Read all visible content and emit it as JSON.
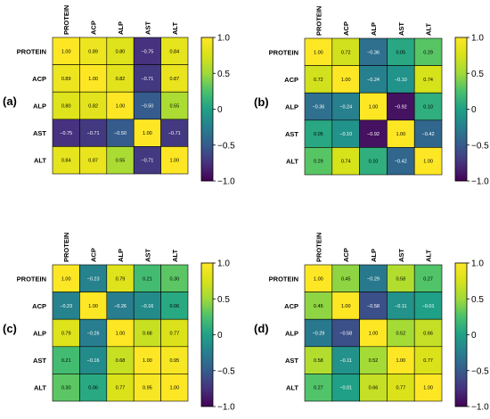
{
  "chart_data": [
    {
      "type": "heatmap",
      "panel_label": "(a)",
      "rows": [
        "PROTEIN",
        "ACP",
        "ALP",
        "AST",
        "ALT"
      ],
      "cols": [
        "PROTEIN",
        "ACP",
        "ALP",
        "AST",
        "ALT"
      ],
      "values": [
        [
          1.0,
          0.89,
          0.8,
          -0.75,
          0.84
        ],
        [
          0.89,
          1.0,
          0.82,
          -0.71,
          0.87
        ],
        [
          0.8,
          0.82,
          1.0,
          -0.5,
          0.55
        ],
        [
          -0.75,
          -0.71,
          -0.5,
          1.0,
          -0.71
        ],
        [
          0.84,
          0.87,
          0.55,
          -0.71,
          1.0
        ]
      ],
      "cell_labels": [
        [
          "1.00",
          "0.89",
          "0.80",
          "−0.75",
          "0.84"
        ],
        [
          "0.89",
          "1.00",
          "0.82",
          "−0.71",
          "0.87"
        ],
        [
          "0.80",
          "0.82",
          "1.00",
          "−0.50",
          "0.55"
        ],
        [
          "−0.75",
          "−0.71",
          "−0.50",
          "1.00",
          "−0.71"
        ],
        [
          "0.84",
          "0.87",
          "0.55",
          "−0.71",
          "1.00"
        ]
      ],
      "colorbar_ticks": [
        "1.0",
        "0.5",
        "0",
        "−0.5",
        "−1.0"
      ],
      "colorbar_tick_values": [
        1.0,
        0.5,
        0,
        -0.5,
        -1.0
      ],
      "vmin": -1.0,
      "vmax": 1.0,
      "colormap": "viridis"
    },
    {
      "type": "heatmap",
      "panel_label": "(b)",
      "rows": [
        "PROTEIN",
        "ACP",
        "ALP",
        "AST",
        "ALT"
      ],
      "cols": [
        "PROTEIN",
        "ACP",
        "ALP",
        "AST",
        "ALT"
      ],
      "values": [
        [
          1.0,
          0.72,
          -0.36,
          0.05,
          0.29
        ],
        [
          0.72,
          1.0,
          -0.24,
          -0.1,
          0.74
        ],
        [
          -0.36,
          -0.24,
          1.0,
          -0.92,
          0.1
        ],
        [
          0.05,
          -0.1,
          -0.92,
          1.0,
          -0.42
        ],
        [
          0.29,
          0.74,
          0.1,
          -0.42,
          1.0
        ]
      ],
      "cell_labels": [
        [
          "1.00",
          "0.72",
          "−0.36",
          "0.05",
          "0.29"
        ],
        [
          "0.72",
          "1.00",
          "−0.24",
          "−0.10",
          "0.74"
        ],
        [
          "−0.36",
          "−0.24",
          "1.00",
          "−0.92",
          "0.10"
        ],
        [
          "0.05",
          "−0.10",
          "−0.92",
          "1.00",
          "−0.42"
        ],
        [
          "0.29",
          "0.74",
          "0.10",
          "−0.42",
          "1.00"
        ]
      ],
      "colorbar_ticks": [
        "1.0",
        "0.5",
        "0",
        "−0.5",
        "−1.0"
      ],
      "colorbar_tick_values": [
        1.0,
        0.5,
        0,
        -0.5,
        -1.0
      ],
      "vmin": -1.0,
      "vmax": 1.0,
      "colormap": "viridis"
    },
    {
      "type": "heatmap",
      "panel_label": "(c)",
      "rows": [
        "PROTEIN",
        "ACP",
        "ALP",
        "AST",
        "ALT"
      ],
      "cols": [
        "PROTEIN",
        "ACP",
        "ALP",
        "AST",
        "ALT"
      ],
      "values": [
        [
          1.0,
          -0.23,
          0.79,
          0.21,
          0.3
        ],
        [
          -0.23,
          1.0,
          -0.26,
          -0.16,
          0.06
        ],
        [
          0.79,
          -0.26,
          1.0,
          0.68,
          0.77
        ],
        [
          0.21,
          -0.16,
          0.68,
          1.0,
          0.95
        ],
        [
          0.3,
          0.06,
          0.77,
          0.95,
          1.0
        ]
      ],
      "cell_labels": [
        [
          "1.00",
          "−0.23",
          "0.79",
          "0.21",
          "0.30"
        ],
        [
          "−0.23",
          "1.00",
          "−0.26",
          "−0.16",
          "0.06"
        ],
        [
          "0.79",
          "−0.26",
          "1.00",
          "0.68",
          "0.77"
        ],
        [
          "0.21",
          "−0.16",
          "0.68",
          "1.00",
          "0.95"
        ],
        [
          "0.30",
          "0.06",
          "0.77",
          "0.95",
          "1.00"
        ]
      ],
      "colorbar_ticks": [
        "1.0",
        "0.5",
        "0",
        "−0.5",
        "−1.0"
      ],
      "colorbar_tick_values": [
        1.0,
        0.5,
        0,
        -0.5,
        -1.0
      ],
      "vmin": -1.0,
      "vmax": 1.0,
      "colormap": "viridis"
    },
    {
      "type": "heatmap",
      "panel_label": "(d)",
      "rows": [
        "PROTEIN",
        "ACP",
        "ALP",
        "AST",
        "ALT"
      ],
      "cols": [
        "PROTEIN",
        "ACP",
        "ALP",
        "AST",
        "ALT"
      ],
      "values": [
        [
          1.0,
          0.45,
          -0.29,
          0.58,
          0.27
        ],
        [
          0.45,
          1.0,
          -0.58,
          -0.11,
          -0.01
        ],
        [
          -0.29,
          -0.58,
          1.0,
          0.52,
          0.66
        ],
        [
          0.58,
          -0.11,
          0.52,
          1.0,
          0.77
        ],
        [
          0.27,
          -0.01,
          0.66,
          0.77,
          1.0
        ]
      ],
      "cell_labels": [
        [
          "1.00",
          "0.45",
          "−0.29",
          "0.58",
          "0.27"
        ],
        [
          "0.45",
          "1.00",
          "−0.58",
          "−0.11",
          "−0.01"
        ],
        [
          "−0.29",
          "−0.58",
          "1.00",
          "0.52",
          "0.66"
        ],
        [
          "0.58",
          "−0.11",
          "0.52",
          "1.00",
          "0.77"
        ],
        [
          "0.27",
          "−0.01",
          "0.66",
          "0.77",
          "1.00"
        ]
      ],
      "colorbar_ticks": [
        "1.0",
        "0.5",
        "0",
        "−0.5",
        "−1.0"
      ],
      "colorbar_tick_values": [
        1.0,
        0.5,
        0,
        -0.5,
        -1.0
      ],
      "vmin": -1.0,
      "vmax": 1.0,
      "colormap": "viridis"
    }
  ]
}
